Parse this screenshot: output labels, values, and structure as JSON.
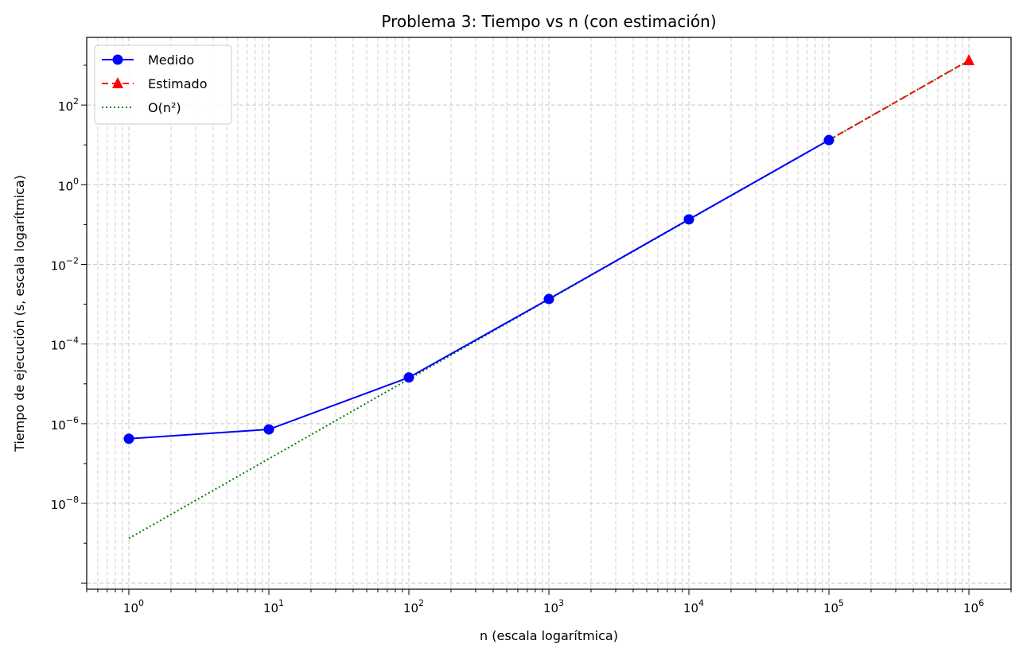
{
  "chart_data": {
    "type": "line",
    "title": "Problema 3: Tiempo vs n (con estimación)",
    "xlabel": "n (escala logarítmica)",
    "ylabel": "Tiempo de ejecución (s, escala logarítmica)",
    "xscale": "log",
    "yscale": "log",
    "xlim": [
      0.5,
      2000000
    ],
    "ylim": [
      7e-11,
      5000
    ],
    "grid": true,
    "legend_placement": "top-left",
    "x_tick_labels": [
      "10^0",
      "10^1",
      "10^2",
      "10^3",
      "10^4",
      "10^5",
      "10^6"
    ],
    "y_tick_labels": [
      "10^-8",
      "10^-6",
      "10^-4",
      "10^-2",
      "10^0",
      "10^2"
    ],
    "series": [
      {
        "name": "Medido",
        "style": "solid",
        "marker": "circle",
        "color": "#0000ff",
        "x": [
          1,
          10,
          100,
          1000,
          10000,
          100000
        ],
        "y": [
          4.2e-07,
          7.2e-07,
          1.45e-05,
          0.00135,
          0.135,
          13.2
        ]
      },
      {
        "name": "Estimado",
        "style": "dashed",
        "marker": "triangle",
        "color": "#ff0000",
        "x": [
          100000,
          1000000
        ],
        "y": [
          13.2,
          1320
        ]
      },
      {
        "name": "O(n²)",
        "style": "dotted",
        "marker": "none",
        "color": "#008000",
        "x": [
          1,
          10,
          100,
          1000,
          10000,
          100000,
          1000000
        ],
        "y": [
          1.32e-09,
          1.32e-07,
          1.32e-05,
          0.00132,
          0.132,
          13.2,
          1320
        ]
      }
    ]
  }
}
